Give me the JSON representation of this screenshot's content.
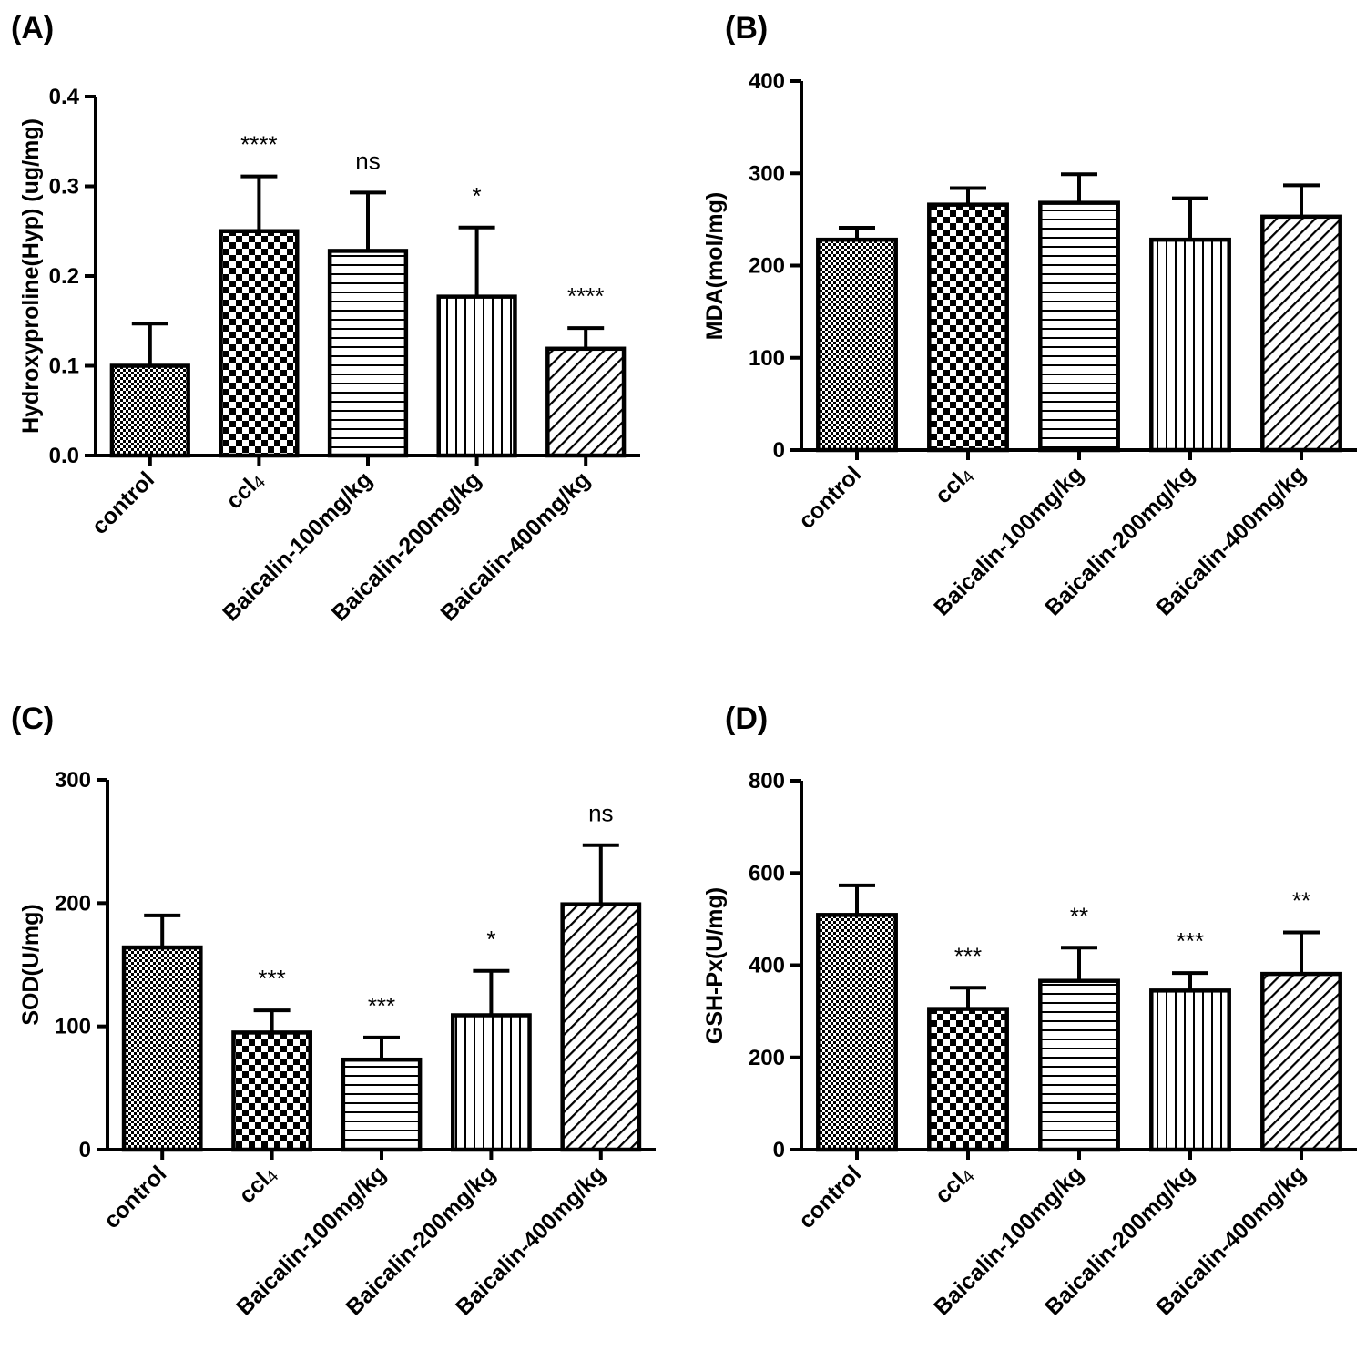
{
  "chart_data": [
    {
      "panel": "(A)",
      "type": "bar",
      "ylabel": "Hydroxyproline(Hyp) (ug/mg)",
      "ylim": [
        0,
        0.4
      ],
      "yticks": [
        "0.0",
        "0.1",
        "0.2",
        "0.3",
        "0.4"
      ],
      "categories": [
        "control",
        "ccl4",
        "Baicalin-100mg/kg",
        "Baicalin-200mg/kg",
        "Baicalin-400mg/kg"
      ],
      "values": [
        0.1,
        0.25,
        0.228,
        0.177,
        0.119
      ],
      "errors": [
        0.047,
        0.061,
        0.065,
        0.077,
        0.023
      ],
      "significance": [
        "",
        "****",
        "ns",
        "*",
        "****"
      ],
      "patterns": [
        "fine-checker",
        "checker",
        "horizontal",
        "vertical",
        "diagonal"
      ]
    },
    {
      "panel": "(B)",
      "type": "bar",
      "ylabel": "MDA(mol/mg)",
      "ylim": [
        0,
        400
      ],
      "yticks": [
        "0",
        "100",
        "200",
        "300",
        "400"
      ],
      "categories": [
        "control",
        "ccl4",
        "Baicalin-100mg/kg",
        "Baicalin-200mg/kg",
        "Baicalin-400mg/kg"
      ],
      "values": [
        228,
        266,
        268,
        228,
        253
      ],
      "errors": [
        13,
        18,
        31,
        45,
        34
      ],
      "significance": [
        "",
        "",
        "",
        "",
        ""
      ],
      "patterns": [
        "fine-checker",
        "checker",
        "horizontal",
        "vertical",
        "diagonal"
      ]
    },
    {
      "panel": "(C)",
      "type": "bar",
      "ylabel": "SOD(U/mg)",
      "ylim": [
        0,
        300
      ],
      "yticks": [
        "0",
        "100",
        "200",
        "300"
      ],
      "categories": [
        "control",
        "ccl4",
        "Baicalin-100mg/kg",
        "Baicalin-200mg/kg",
        "Baicalin-400mg/kg"
      ],
      "values": [
        164,
        95,
        73,
        109,
        199
      ],
      "errors": [
        26,
        18,
        18,
        36,
        48
      ],
      "significance": [
        "",
        "***",
        "***",
        "*",
        "ns"
      ],
      "patterns": [
        "fine-checker",
        "checker",
        "horizontal",
        "vertical",
        "diagonal"
      ]
    },
    {
      "panel": "(D)",
      "type": "bar",
      "ylabel": "GSH-Px(U/mg)",
      "ylim": [
        0,
        800
      ],
      "yticks": [
        "0",
        "200",
        "400",
        "600",
        "800"
      ],
      "categories": [
        "control",
        "ccl4",
        "Baicalin-100mg/kg",
        "Baicalin-200mg/kg",
        "Baicalin-400mg/kg"
      ],
      "values": [
        509,
        305,
        366,
        345,
        381
      ],
      "errors": [
        64,
        46,
        72,
        38,
        90
      ],
      "significance": [
        "",
        "***",
        "**",
        "***",
        "**"
      ],
      "patterns": [
        "fine-checker",
        "checker",
        "horizontal",
        "vertical",
        "diagonal"
      ]
    }
  ]
}
